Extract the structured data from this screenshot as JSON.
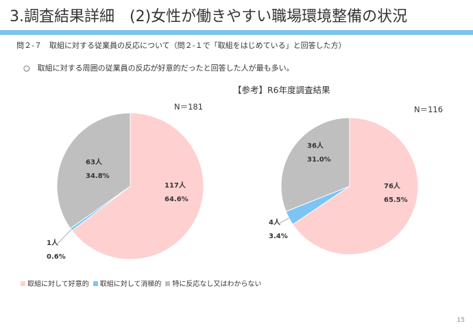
{
  "header": {
    "title": "3.調査結果詳細　(2)女性が働きやすい職場環境整備の状況"
  },
  "question": "問２-７　取組に対する従業員の反応について（問２-１で「取組をはじめている」と回答した方）",
  "note": "○　取組に対する周囲の従業員の反応が好意的だったと回答した人が最も多い。",
  "reference_label": "【参考】R6年度調査結果",
  "page_number": "15",
  "colors": {
    "positive": "#ffd0d0",
    "negative": "#7cc4f4",
    "neutral": "#bfbfbf",
    "accent": "#7cc4ef"
  },
  "chart_data": [
    {
      "type": "pie",
      "n_label": "N＝181",
      "categories": [
        "取組に対して好意的",
        "取組に対して消極的",
        "特に反応なし又はわからない"
      ],
      "counts_labels": [
        "117人",
        "1人",
        "63人"
      ],
      "percent_labels": [
        "64.6%",
        "0.6%",
        "34.8%"
      ],
      "values": [
        64.6,
        0.6,
        34.8
      ]
    },
    {
      "type": "pie",
      "n_label": "N＝116",
      "categories": [
        "取組に対して好意的",
        "取組に対して消極的",
        "特に反応なし又はわからない"
      ],
      "counts_labels": [
        "76人",
        "4人",
        "36人"
      ],
      "percent_labels": [
        "65.5%",
        "3.4%",
        "31.0%"
      ],
      "values": [
        65.5,
        3.4,
        31.0
      ]
    }
  ],
  "legend": [
    "取組に対して好意的",
    "取組に対して消極的",
    "特に反応なし又はわからない"
  ]
}
